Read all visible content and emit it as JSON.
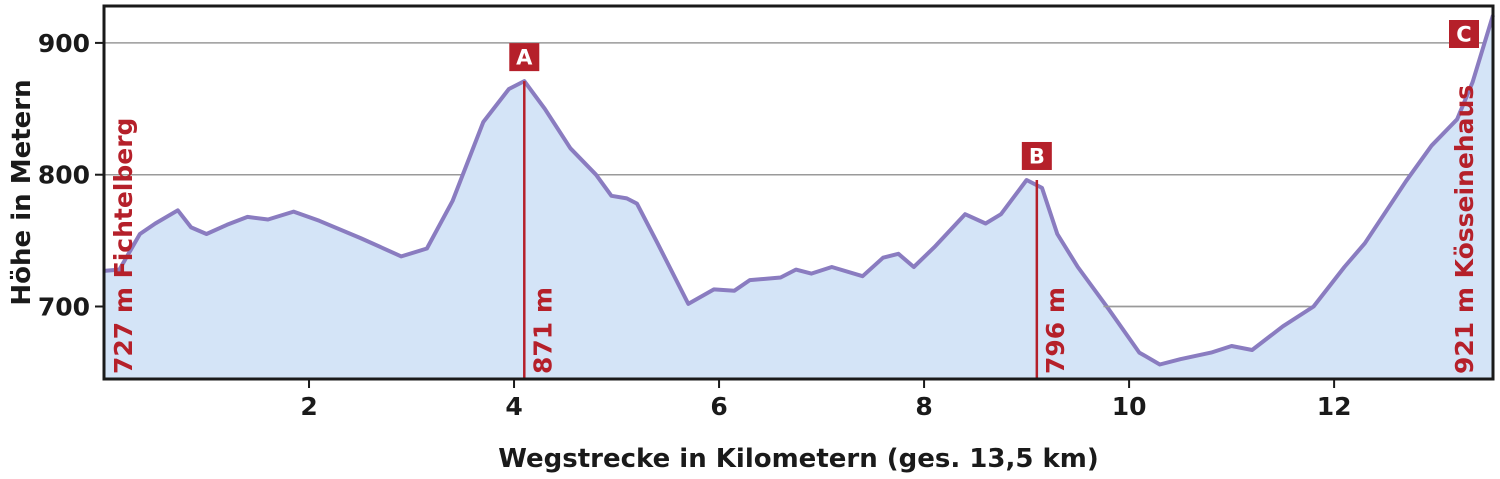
{
  "chart_data": {
    "type": "area",
    "xlabel": "Wegstrecke in Kilometern (ges. 13,5 km)",
    "ylabel": "Höhe in Metern",
    "xlim": [
      0,
      13.55
    ],
    "ylim": [
      645,
      928
    ],
    "x_ticks": [
      2,
      4,
      6,
      8,
      10,
      12
    ],
    "x_tick_labels": [
      "2",
      "4",
      "6",
      "8",
      "10",
      "12"
    ],
    "y_ticks": [
      700,
      800,
      900
    ],
    "y_tick_labels": [
      "700",
      "800",
      "900"
    ],
    "grid": "horizontal",
    "colors": {
      "fill": "#d4e4f7",
      "line": "#8a7cc0",
      "accent": "#b5202a",
      "grid": "#9a9a9a"
    },
    "x": [
      0,
      0.15,
      0.35,
      0.5,
      0.72,
      0.85,
      1.0,
      1.2,
      1.4,
      1.6,
      1.85,
      2.1,
      2.5,
      2.9,
      3.15,
      3.4,
      3.7,
      3.95,
      4.1,
      4.3,
      4.55,
      4.8,
      4.95,
      5.1,
      5.2,
      5.4,
      5.7,
      5.95,
      6.15,
      6.3,
      6.6,
      6.75,
      6.9,
      7.1,
      7.4,
      7.6,
      7.75,
      7.9,
      8.1,
      8.4,
      8.6,
      8.75,
      9.0,
      9.15,
      9.3,
      9.5,
      9.8,
      10.1,
      10.3,
      10.5,
      10.8,
      11.0,
      11.2,
      11.5,
      11.8,
      12.1,
      12.3,
      12.7,
      12.95,
      13.2,
      13.35,
      13.55
    ],
    "y": [
      727,
      728,
      755,
      763,
      773,
      760,
      755,
      762,
      768,
      766,
      772,
      765,
      752,
      738,
      744,
      780,
      840,
      865,
      871,
      850,
      820,
      800,
      784,
      782,
      778,
      748,
      702,
      713,
      712,
      720,
      722,
      728,
      725,
      730,
      723,
      737,
      740,
      730,
      745,
      770,
      763,
      770,
      796,
      790,
      755,
      730,
      698,
      665,
      656,
      660,
      665,
      670,
      667,
      685,
      700,
      730,
      748,
      795,
      822,
      842,
      870,
      921
    ],
    "markers": [
      {
        "label": "A",
        "km": 4.1,
        "elevation": 871,
        "elevation_label": "871 m"
      },
      {
        "label": "B",
        "km": 9.1,
        "elevation": 796,
        "elevation_label": "796 m"
      },
      {
        "label": "C",
        "km": 13.5,
        "elevation": 921,
        "elevation_label": "921 m Kösseinehaus"
      }
    ],
    "start": {
      "elevation": 727,
      "elevation_label": "727 m Fichtelberg"
    },
    "reference_segment": {
      "x_start": 9.75,
      "x_end": 11.75,
      "y": 700
    }
  }
}
